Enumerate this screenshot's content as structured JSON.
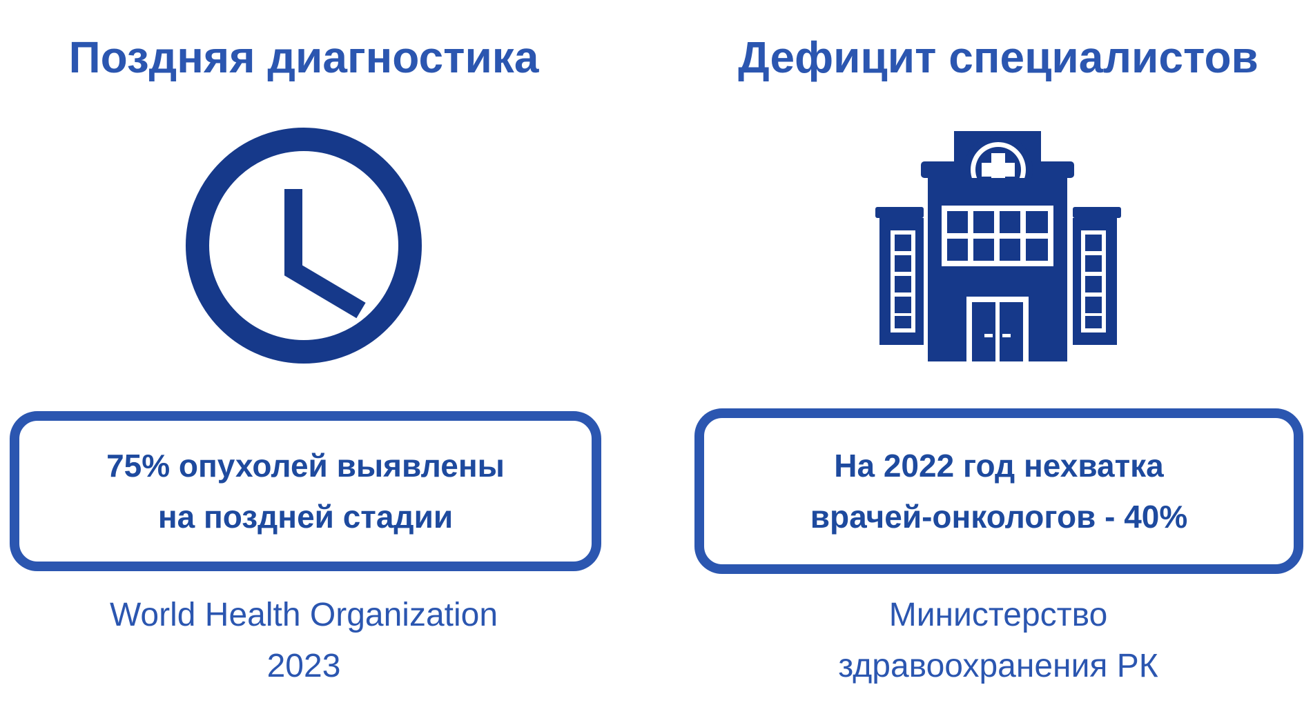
{
  "colors": {
    "accent": "#2b56b0",
    "icon_dark": "#16398a",
    "background": "#ffffff"
  },
  "left": {
    "title": "Поздняя диагностика",
    "icon": "clock-icon",
    "box_lines": [
      "75% опухолей выявлены",
      "на поздней стадии"
    ],
    "source_lines": [
      "World Health Organization",
      "2023"
    ]
  },
  "right": {
    "title": "Дефицит специалистов",
    "icon": "hospital-icon",
    "box_lines": [
      "На 2022 год нехватка",
      "врачей-онкологов - 40%"
    ],
    "source_lines": [
      "Министерство",
      "здравоохранения РК"
    ]
  }
}
